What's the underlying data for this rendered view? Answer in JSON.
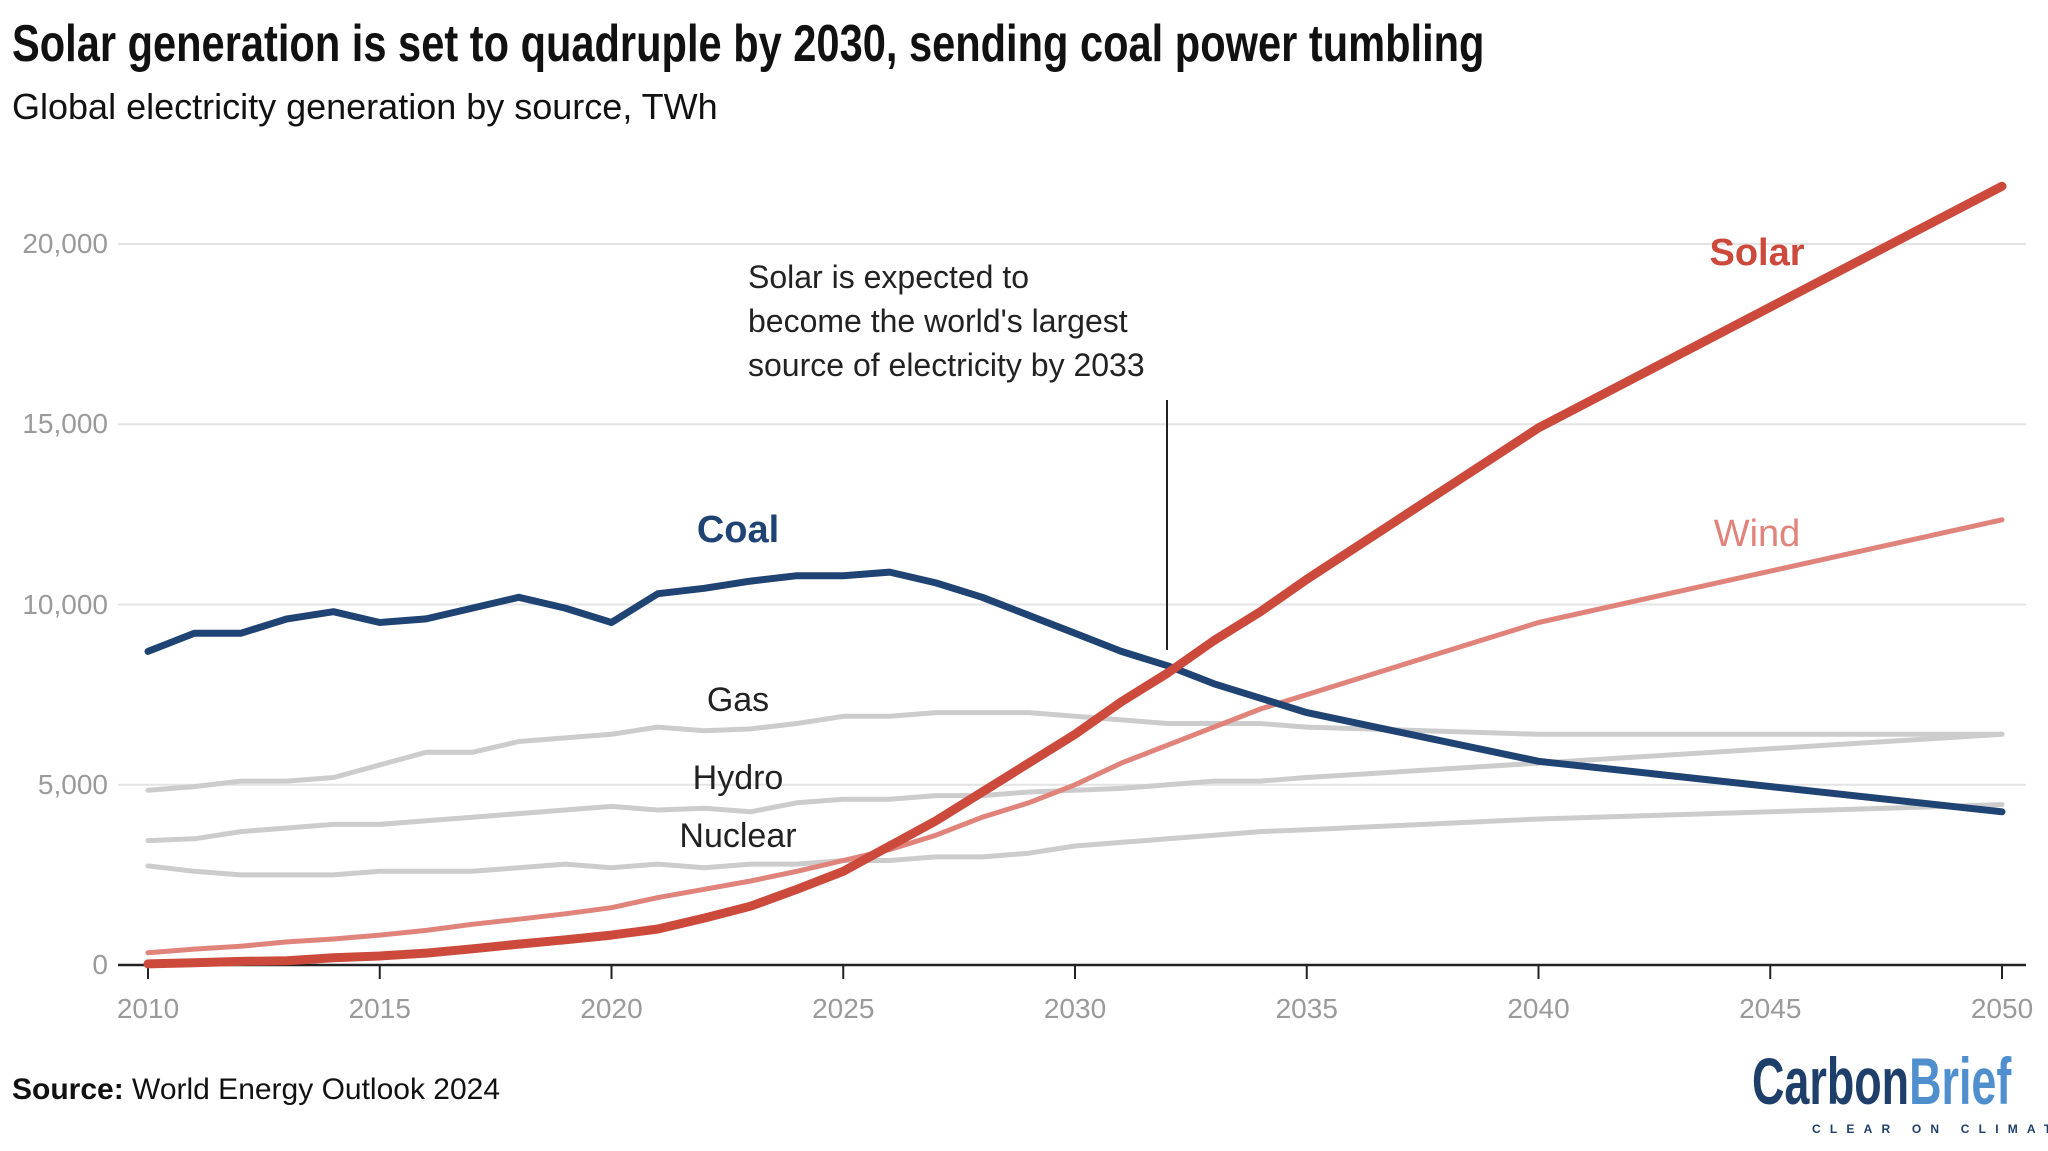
{
  "title": "Solar generation is set to quadruple by 2030, sending coal power tumbling",
  "subtitle": "Global electricity generation by source, TWh",
  "source_label": "Source:",
  "source_text": "World Energy Outlook 2024",
  "logo": {
    "carbon": "Carbon",
    "brief": "Brief",
    "tagline": "CLEAR ON CLIMATE",
    "colors": {
      "carbon": "#1f3f6b",
      "brief": "#4f8fce"
    }
  },
  "chart_data": {
    "type": "line",
    "title": "Solar generation is set to quadruple by 2030, sending coal power tumbling",
    "subtitle": "Global electricity generation by source, TWh",
    "xlim": [
      2010,
      2050
    ],
    "ylim": [
      0,
      22000
    ],
    "x_ticks": [
      "2010",
      "2015",
      "2020",
      "2025",
      "2030",
      "2035",
      "2040",
      "2045",
      "2050"
    ],
    "y_ticks": [
      "0",
      "5,000",
      "10,000",
      "15,000",
      "20,000"
    ],
    "y_tick_values": [
      0,
      5000,
      10000,
      15000,
      20000
    ],
    "x_tick_values": [
      2010,
      2015,
      2020,
      2025,
      2030,
      2035,
      2040,
      2045,
      2050
    ],
    "grid": "horizontal",
    "x": [
      2010,
      2011,
      2012,
      2013,
      2014,
      2015,
      2016,
      2017,
      2018,
      2019,
      2020,
      2021,
      2022,
      2023,
      2024,
      2025,
      2026,
      2027,
      2028,
      2029,
      2030,
      2031,
      2032,
      2033,
      2034,
      2035,
      2040,
      2050
    ],
    "series": [
      {
        "name": "Gas",
        "color": "#cccccc",
        "label_color": "#222222",
        "values": [
          4850,
          4950,
          5100,
          5100,
          5200,
          5550,
          5900,
          5900,
          6200,
          6300,
          6400,
          6600,
          6500,
          6550,
          6700,
          6900,
          6900,
          7000,
          7000,
          7000,
          6900,
          6800,
          6700,
          6700,
          6700,
          6600,
          6400,
          6400
        ]
      },
      {
        "name": "Hydro",
        "color": "#cccccc",
        "label_color": "#222222",
        "values": [
          3450,
          3500,
          3700,
          3800,
          3900,
          3900,
          4000,
          4100,
          4200,
          4300,
          4400,
          4300,
          4350,
          4250,
          4500,
          4600,
          4600,
          4700,
          4700,
          4800,
          4850,
          4900,
          5000,
          5100,
          5100,
          5200,
          5600,
          6400
        ]
      },
      {
        "name": "Nuclear",
        "color": "#cccccc",
        "label_color": "#222222",
        "values": [
          2750,
          2600,
          2500,
          2500,
          2500,
          2600,
          2600,
          2600,
          2700,
          2800,
          2700,
          2800,
          2700,
          2800,
          2800,
          2900,
          2900,
          3000,
          3000,
          3100,
          3300,
          3400,
          3500,
          3600,
          3700,
          3750,
          4050,
          4450
        ]
      },
      {
        "name": "Wind",
        "color": "#e0837a",
        "label_color": "#e0837a",
        "values": [
          340,
          440,
          520,
          640,
          720,
          830,
          960,
          1130,
          1270,
          1420,
          1590,
          1870,
          2100,
          2330,
          2600,
          2900,
          3200,
          3600,
          4100,
          4500,
          5000,
          5600,
          6100,
          6600,
          7100,
          7500,
          9500,
          12350
        ]
      },
      {
        "name": "Coal",
        "color": "#1f4373",
        "label_color": "#1f4373",
        "values": [
          8700,
          9200,
          9200,
          9600,
          9800,
          9500,
          9600,
          9900,
          10200,
          9900,
          9500,
          10300,
          10450,
          10650,
          10800,
          10800,
          10900,
          10600,
          10200,
          9700,
          9200,
          8700,
          8300,
          7800,
          7400,
          7000,
          5650,
          4250
        ]
      },
      {
        "name": "Solar",
        "color": "#cc4a3c",
        "label_color": "#cc4a3c",
        "values": [
          30,
          60,
          100,
          120,
          200,
          250,
          330,
          450,
          580,
          700,
          830,
          1000,
          1300,
          1630,
          2100,
          2600,
          3300,
          4000,
          4800,
          5600,
          6400,
          7300,
          8100,
          9000,
          9800,
          10700,
          14900,
          21600
        ]
      }
    ],
    "annotation": {
      "lines": [
        "Solar is expected to",
        "become the world's largest",
        "source of electricity by 2033"
      ],
      "x": 2032
    }
  }
}
